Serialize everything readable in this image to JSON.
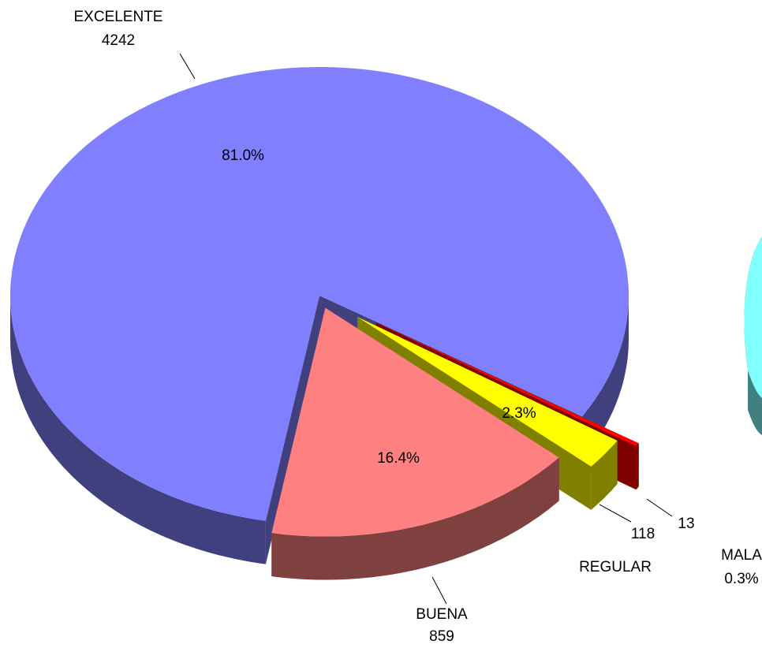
{
  "chart_data": {
    "type": "pie",
    "categories": [
      "EXCELENTE",
      "BUENA",
      "REGULAR",
      "MALA"
    ],
    "values": [
      4242,
      859,
      118,
      13
    ],
    "percentage_labels": [
      "81.0%",
      "16.4%",
      "2.3%",
      "0.3%"
    ],
    "colors": [
      "#8080ff",
      "#ff8080",
      "#ffff00",
      "#ff0000"
    ]
  }
}
